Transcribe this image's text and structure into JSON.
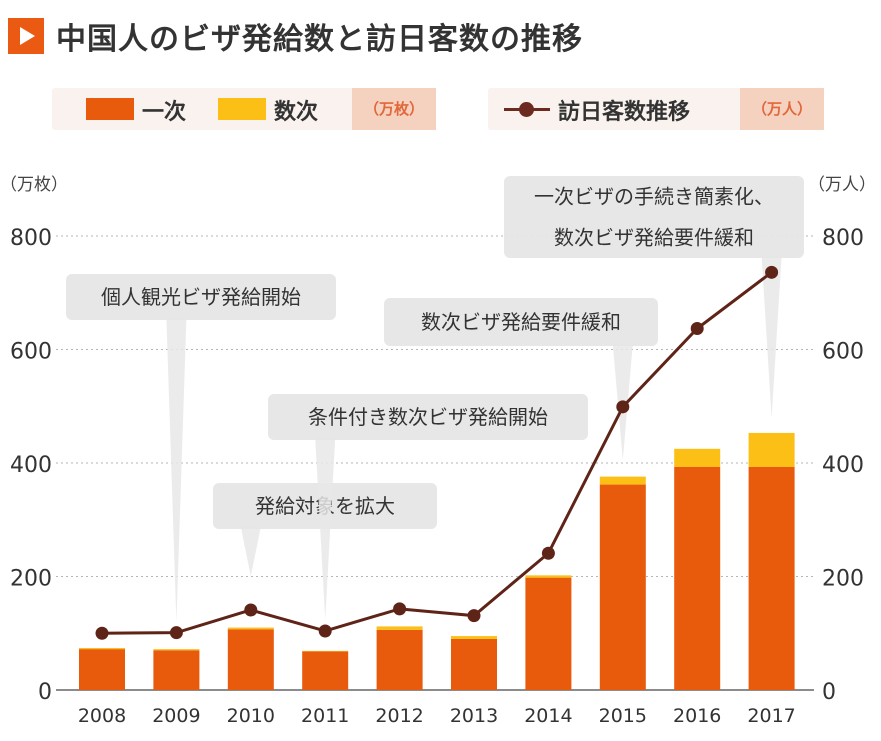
{
  "header": {
    "title": "中国人のビザ発給数と訪日客数の推移"
  },
  "legend": {
    "single_label": "一次",
    "multiple_label": "数次",
    "left_unit": "（万枚）",
    "line_label": "訪日客数推移",
    "right_unit": "（万人）"
  },
  "colors": {
    "single": "#e85a0c",
    "multiple": "#fbbf16",
    "line": "#5f2418",
    "accent": "#ea5a12"
  },
  "chart_data": {
    "type": "bar",
    "title": "中国人のビザ発給数と訪日客数の推移",
    "left_axis_label": "（万枚）",
    "right_axis_label": "（万人）",
    "ylim": [
      0,
      800
    ],
    "yticks": [
      0,
      200,
      400,
      600,
      800
    ],
    "grid": true,
    "categories": [
      "2008",
      "2009",
      "2010",
      "2011",
      "2012",
      "2013",
      "2014",
      "2015",
      "2016",
      "2017"
    ],
    "series": [
      {
        "name": "一次",
        "kind": "bar",
        "stack": "visa",
        "values": [
          72,
          70,
          107,
          68,
          106,
          90,
          198,
          362,
          393,
          393
        ]
      },
      {
        "name": "数次",
        "kind": "bar",
        "stack": "visa",
        "values": [
          2,
          2,
          3,
          1,
          6,
          5,
          4,
          14,
          32,
          60
        ]
      },
      {
        "name": "訪日客数推移",
        "kind": "line",
        "axis": "right",
        "values": [
          100,
          101,
          141,
          104,
          143,
          131,
          241,
          499,
          637,
          736
        ]
      }
    ],
    "annotations": [
      {
        "text": "個人観光ビザ発給開始",
        "category": "2009"
      },
      {
        "text": "発給対象を拡大",
        "category": "2010"
      },
      {
        "text": "条件付き数次ビザ発給開始",
        "category": "2011"
      },
      {
        "text": "数次ビザ発給要件緩和",
        "category": "2015"
      },
      {
        "text": "一次ビザの手続き簡素化、\n数次ビザ発給要件緩和",
        "category": "2017"
      }
    ]
  }
}
